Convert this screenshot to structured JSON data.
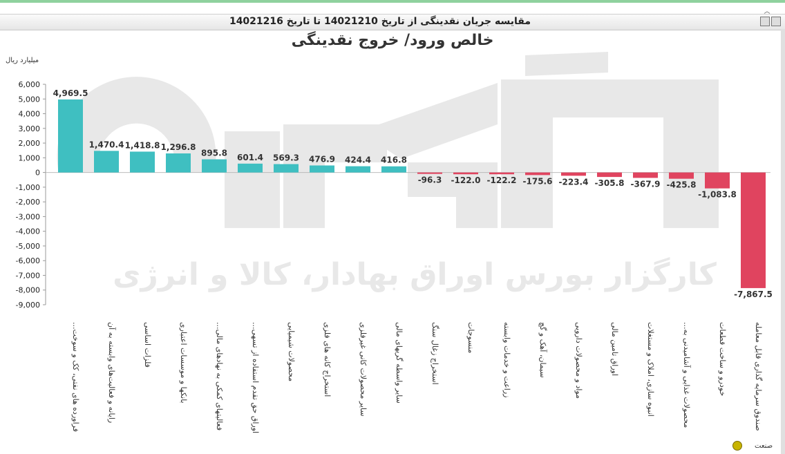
{
  "header": {
    "title": "مقایسه جریان نقدینگی از تاریخ 14021210 تا تاریخ 14021216",
    "collapse_icon": "chevron-up-icon"
  },
  "toolbar": {
    "icons": [
      "print-icon",
      "export-icon"
    ]
  },
  "footer": {
    "label": "صنعت",
    "icon": "refresh-icon"
  },
  "watermark": {
    "text": "کارگزار بورس اوراق بهادار، کالا و انرژی"
  },
  "colors": {
    "positive": "#3fbfc1",
    "negative": "#e0445f"
  },
  "chart_data": {
    "type": "bar",
    "title": "خالص ورود/ خروج نقدینگی",
    "ylabel": "میلیارد ریال",
    "xlabel": "",
    "ylim": [
      -9000,
      6000
    ],
    "ytick_step": 1000,
    "ytick_labels": [
      "6,000",
      "5,000",
      "4,000",
      "3,000",
      "2,000",
      "1,000",
      "0",
      "-1,000",
      "-2,000",
      "-3,000",
      "-4,000",
      "-5,000",
      "-6,000",
      "-7,000",
      "-8,000",
      "-9,000"
    ],
    "grid": false,
    "categories": [
      "فراورده های نفتی، کک و سوخت...",
      "رایانه و فعالیت‌های وابسته به آن",
      "فلزات اساسی",
      "بانکها و موسسات اعتباری",
      "فعالیتهای کمکی به نهادهای مالی...",
      "اوراق حق تقدم استفاده از تسهی...",
      "محصولات شیمیایی",
      "استخراج کانه های فلزی",
      "سایر محصولات کانی غیرفلزی",
      "سایر واسطه گریهای مالی",
      "استخراج زغال سنگ",
      "منسوجات",
      "زراعت و خدمات وابسته",
      "سیمان، آهک و گچ",
      "مواد و محصولات دارویی",
      "اوراق تامین مالی",
      "انبوه سازی، املاک و مستغلات",
      "محصولات غذایی و آشامیدنی به...",
      "خودرو و ساخت قطعات",
      "صندوق سرمایه گذاری قابل معامله"
    ],
    "values": [
      4969.5,
      1470.4,
      1418.8,
      1296.8,
      895.8,
      601.4,
      569.3,
      476.9,
      424.4,
      416.8,
      -96.3,
      -122.0,
      -122.2,
      -175.6,
      -223.4,
      -305.8,
      -367.9,
      -425.8,
      -1083.8,
      -7867.5
    ],
    "value_labels": [
      "4,969.5",
      "1,470.4",
      "1,418.8",
      "1,296.8",
      "895.8",
      "601.4",
      "569.3",
      "476.9",
      "424.4",
      "416.8",
      "-96.3",
      "-122.0",
      "-122.2",
      "-175.6",
      "-223.4",
      "-305.8",
      "-367.9",
      "-425.8",
      "-1,083.8",
      "-7,867.5"
    ]
  }
}
